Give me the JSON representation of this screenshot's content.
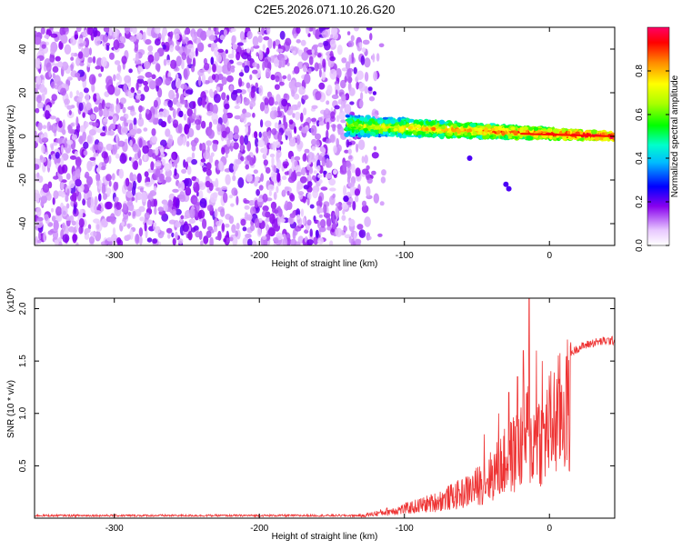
{
  "figure_title": "C2E5.2026.071.10.26.G20",
  "chart_data": [
    {
      "type": "heatmap",
      "title": "C2E5.2026.071.10.26.G20",
      "xlabel": "Height of straight line (km)",
      "ylabel": "Frequency (Hz)",
      "xlim": [
        -355,
        45
      ],
      "ylim": [
        -50,
        50
      ],
      "x_ticks": [
        -300,
        -200,
        -100,
        0
      ],
      "y_ticks": [
        -40,
        -20,
        0,
        20,
        40
      ],
      "x_tick_labels": [
        "-300",
        "-200",
        "-100",
        "0"
      ],
      "y_tick_labels": [
        "-40",
        "-20",
        "0",
        "20",
        "40"
      ],
      "noise_region_x": [
        -355,
        -125
      ],
      "signal_band": {
        "x_start": -140,
        "x_end": 45,
        "center_freq_start": 5,
        "center_freq_end": 0,
        "halfwidth_start": 4.5,
        "halfwidth_end": 1.5
      },
      "colorbar": {
        "label": "Normalized spectral amplitude",
        "range": [
          0,
          1
        ],
        "ticks": [
          0.0,
          0.2,
          0.4,
          0.6,
          0.8
        ],
        "tick_labels": [
          "0.0",
          "0.2",
          "0.4",
          "0.6",
          "0.8"
        ]
      }
    },
    {
      "type": "line",
      "xlabel": "Height of straight line (km)",
      "ylabel": "SNR (10 * v/v)",
      "y_multiplier": "(x10",
      "y_multiplier_exp": "4",
      "xlim": [
        -355,
        45
      ],
      "ylim": [
        0,
        2.1
      ],
      "x_ticks": [
        -300,
        -200,
        -100,
        0
      ],
      "y_ticks": [
        0.5,
        1.0,
        1.5,
        2.0
      ],
      "x_tick_labels": [
        "-300",
        "-200",
        "-100",
        "0"
      ],
      "y_tick_labels": [
        "0.5",
        "1.0",
        "1.5",
        "2.0"
      ],
      "series": [
        {
          "name": "SNR",
          "color": "#ee3333",
          "envelope_x": [
            -355,
            -130,
            -110,
            -100,
            -80,
            -60,
            -50,
            -40,
            -30,
            -20,
            -15,
            -12,
            -8,
            -5,
            0,
            5,
            10,
            20,
            30,
            40,
            45
          ],
          "envelope_y": [
            0.02,
            0.03,
            0.1,
            0.13,
            0.22,
            0.35,
            0.45,
            0.6,
            0.8,
            1.0,
            1.25,
            1.0,
            1.2,
            1.1,
            1.3,
            1.4,
            1.55,
            1.65,
            1.7,
            1.72,
            1.72
          ],
          "peaks": [
            {
              "x": -14,
              "y": 2.1
            },
            {
              "x": -18,
              "y": 1.6
            },
            {
              "x": -22,
              "y": 1.35
            },
            {
              "x": -9,
              "y": 1.6
            },
            {
              "x": -5,
              "y": 1.5
            },
            {
              "x": -28,
              "y": 1.2
            },
            {
              "x": -35,
              "y": 1.0
            },
            {
              "x": -45,
              "y": 0.8
            }
          ]
        }
      ]
    }
  ]
}
